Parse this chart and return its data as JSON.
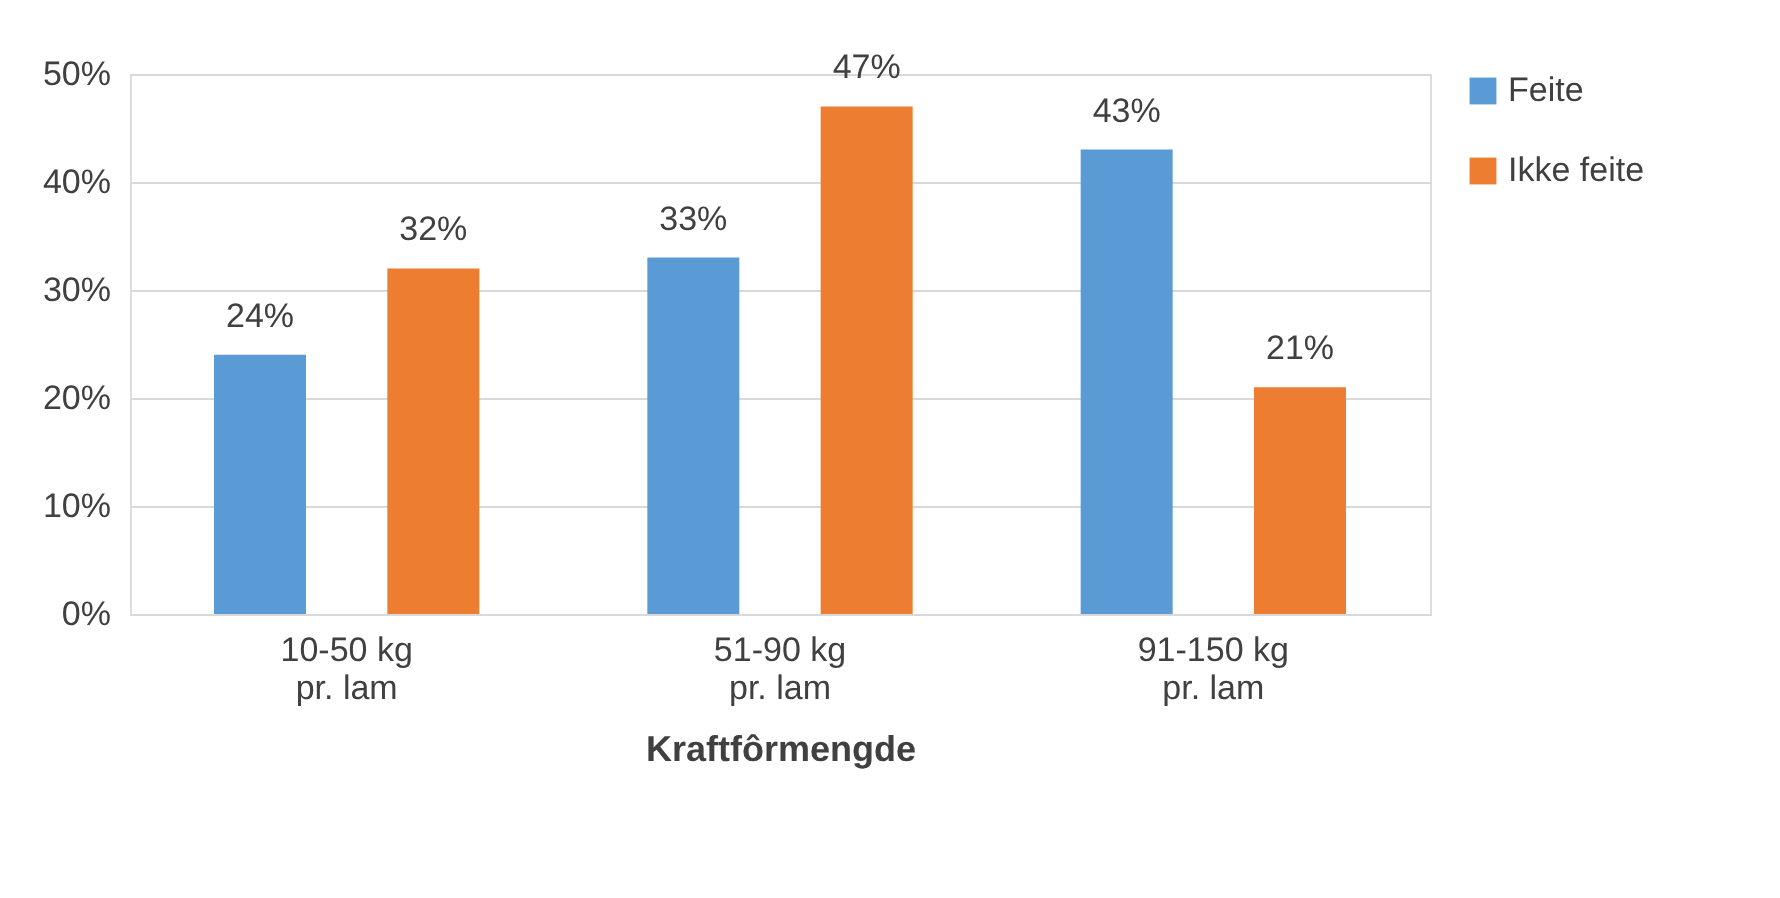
{
  "chart_data": {
    "type": "bar",
    "xlabel": "Kraftfôrmengde",
    "categories": [
      "10-50 kg\npr. lam",
      "51-90 kg\npr. lam",
      "91-150 kg\npr. lam"
    ],
    "series": [
      {
        "name": "Feite",
        "color": "#5b9bd5",
        "values": [
          24,
          33,
          43
        ],
        "value_labels": [
          "24%",
          "33%",
          "43%"
        ]
      },
      {
        "name": "Ikke feite",
        "color": "#ed7d31",
        "values": [
          32,
          47,
          21
        ],
        "value_labels": [
          "32%",
          "47%",
          "21%"
        ]
      }
    ],
    "ylim": [
      0,
      50
    ],
    "yticks": [
      {
        "value": 0,
        "label": "0%"
      },
      {
        "value": 10,
        "label": "10%"
      },
      {
        "value": 20,
        "label": "20%"
      },
      {
        "value": 30,
        "label": "30%"
      },
      {
        "value": 40,
        "label": "40%"
      },
      {
        "value": 50,
        "label": "50%"
      }
    ],
    "grid": "y",
    "legend": "right"
  }
}
